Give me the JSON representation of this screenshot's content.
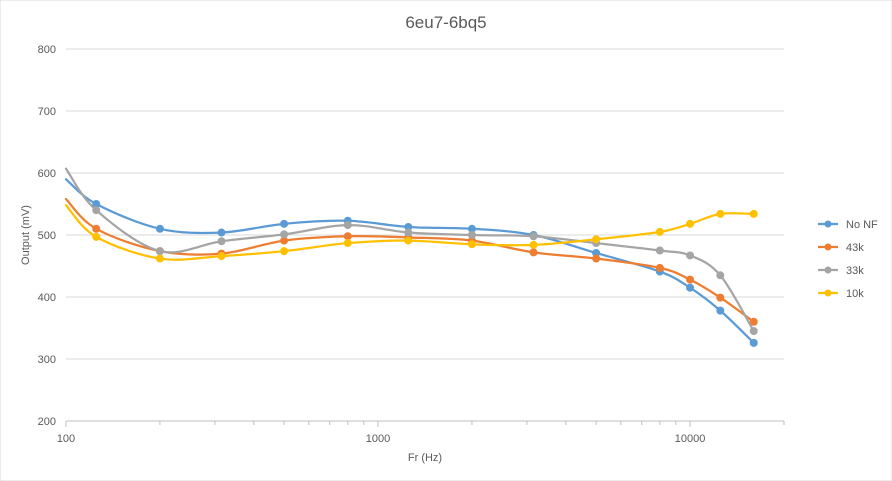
{
  "chart_data": {
    "type": "line",
    "title": "6eu7-6bq5",
    "xlabel": "Fr (Hz)",
    "ylabel": "Output (mV)",
    "x_scale": "log",
    "xlim": [
      100,
      20000
    ],
    "ylim": [
      200,
      800
    ],
    "x_tick_labels": [
      "100",
      "1000",
      "10000"
    ],
    "y_tick_labels": [
      "200",
      "300",
      "400",
      "500",
      "600",
      "700",
      "800"
    ],
    "grid": "horizontal",
    "legend_position": "right",
    "series": [
      {
        "name": "No NF",
        "color": "#5b9bd5",
        "points": [
          [
            100,
            590
          ],
          [
            125,
            550
          ],
          [
            200,
            510
          ],
          [
            315,
            504
          ],
          [
            500,
            518
          ],
          [
            800,
            523
          ],
          [
            1250,
            513
          ],
          [
            2000,
            510
          ],
          [
            3150,
            500
          ],
          [
            5000,
            471
          ],
          [
            8000,
            441
          ],
          [
            10000,
            415
          ],
          [
            12500,
            378
          ],
          [
            16000,
            326
          ]
        ]
      },
      {
        "name": "43k",
        "color": "#ed7d31",
        "points": [
          [
            100,
            558
          ],
          [
            125,
            510
          ],
          [
            200,
            474
          ],
          [
            315,
            470
          ],
          [
            500,
            491
          ],
          [
            800,
            498
          ],
          [
            1250,
            496
          ],
          [
            2000,
            491
          ],
          [
            3150,
            472
          ],
          [
            5000,
            462
          ],
          [
            8000,
            447
          ],
          [
            10000,
            428
          ],
          [
            12500,
            399
          ],
          [
            16000,
            360
          ]
        ]
      },
      {
        "name": "33k",
        "color": "#a5a5a5",
        "points": [
          [
            100,
            607
          ],
          [
            125,
            540
          ],
          [
            200,
            474
          ],
          [
            315,
            490
          ],
          [
            500,
            501
          ],
          [
            800,
            516
          ],
          [
            1250,
            504
          ],
          [
            2000,
            500
          ],
          [
            3150,
            498
          ],
          [
            5000,
            487
          ],
          [
            8000,
            475
          ],
          [
            10000,
            467
          ],
          [
            12500,
            435
          ],
          [
            16000,
            345
          ]
        ]
      },
      {
        "name": "10k",
        "color": "#ffc000",
        "points": [
          [
            100,
            548
          ],
          [
            125,
            497
          ],
          [
            200,
            462
          ],
          [
            315,
            466
          ],
          [
            500,
            474
          ],
          [
            800,
            487
          ],
          [
            1250,
            491
          ],
          [
            2000,
            485
          ],
          [
            3150,
            484
          ],
          [
            5000,
            493
          ],
          [
            8000,
            505
          ],
          [
            10000,
            518
          ],
          [
            12500,
            534
          ],
          [
            16000,
            534
          ]
        ]
      }
    ]
  }
}
